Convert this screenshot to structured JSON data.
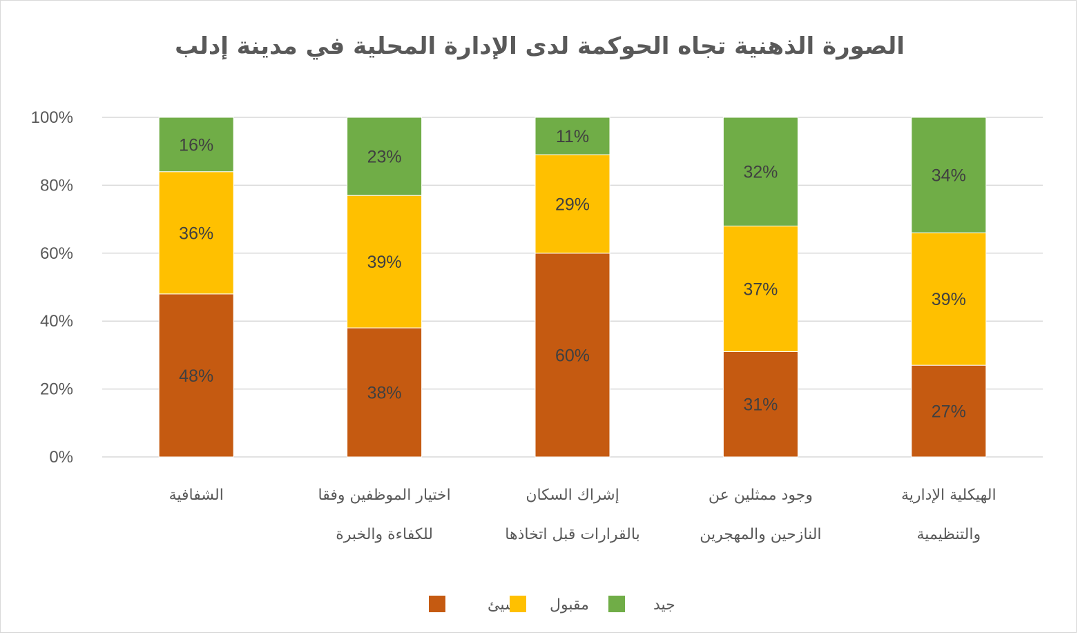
{
  "chart_data": {
    "type": "bar",
    "stacked": true,
    "title": "الصورة الذهنية تجاه الحوكمة لدى الإدارة المحلية في مدينة إدلب",
    "categories": [
      [
        "الشفافية"
      ],
      [
        "اختيار الموظفين وفقا",
        "للكفاءة والخبرة"
      ],
      [
        "إشراك السكان",
        "بالقرارات قبل اتخاذها"
      ],
      [
        "وجود ممثلين عن",
        "النازحين والمهجرين"
      ],
      [
        "الهيكلية الإدارية",
        "والتنظيمية"
      ]
    ],
    "series": [
      {
        "name": "سيئ",
        "color": "#c55a11",
        "values": [
          48,
          38,
          60,
          31,
          27
        ]
      },
      {
        "name": "مقبول",
        "color": "#ffc000",
        "values": [
          36,
          39,
          29,
          37,
          39
        ]
      },
      {
        "name": "جيد",
        "color": "#70ad47",
        "values": [
          16,
          23,
          11,
          32,
          34
        ]
      }
    ],
    "ylim": [
      0,
      100
    ],
    "yticks": [
      "0%",
      "20%",
      "40%",
      "60%",
      "80%",
      "100%"
    ],
    "legend": [
      "سيئ",
      "مقبول",
      "جيد"
    ],
    "legend_position": "bottom",
    "grid": true
  }
}
